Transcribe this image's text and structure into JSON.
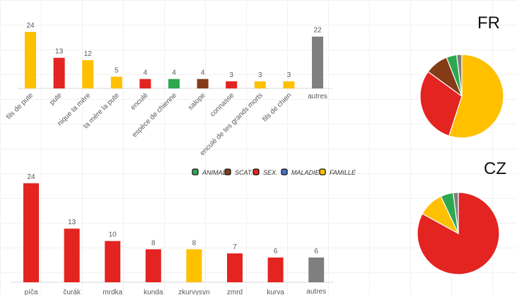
{
  "colors": {
    "ANIMAL": "#2ea84e",
    "SCAT.": "#843c17",
    "SEX.": "#e32420",
    "MALADIE": "#4472c4",
    "FAMILLE": "#ffc000",
    "autres": "#7f7f7f"
  },
  "legend": [
    {
      "label": "ANIMAL",
      "key": "ANIMAL"
    },
    {
      "label": "SCAT.",
      "key": "SCAT."
    },
    {
      "label": "SEX.",
      "key": "SEX."
    },
    {
      "label": "MALADIE",
      "key": "MALADIE"
    },
    {
      "label": "FAMILLE",
      "key": "FAMILLE"
    }
  ],
  "chart_data": [
    {
      "type": "bar",
      "title": "FR",
      "categories": [
        "fils de pute",
        "pute",
        "nique ta mère",
        "ta mère la pute",
        "enculé",
        "espèce de chienne",
        "salope",
        "connasse",
        "enculé de tes grands morts",
        "fils de chien",
        "autres"
      ],
      "values": [
        24,
        13,
        12,
        5,
        4,
        4,
        4,
        3,
        3,
        3,
        22
      ],
      "category_type": [
        "FAMILLE",
        "SEX.",
        "FAMILLE",
        "FAMILLE",
        "SEX.",
        "ANIMAL",
        "SCAT.",
        "SEX.",
        "FAMILLE",
        "FAMILLE",
        "autres"
      ],
      "grid": false
    },
    {
      "type": "pie",
      "title": "FR",
      "categories": [
        "FAMILLE",
        "SEX.",
        "SCAT.",
        "ANIMAL",
        "autres"
      ],
      "values": [
        55,
        30,
        9,
        4,
        2
      ]
    },
    {
      "type": "bar",
      "title": "CZ",
      "categories": [
        "píča",
        "čurák",
        "mrdka",
        "kunda",
        "zkurvysyn",
        "zmrd",
        "kurva",
        "autres"
      ],
      "values": [
        24,
        13,
        10,
        8,
        8,
        7,
        6,
        6
      ],
      "category_type": [
        "SEX.",
        "SEX.",
        "SEX.",
        "SEX.",
        "FAMILLE",
        "SEX.",
        "SEX.",
        "autres"
      ],
      "grid": false
    },
    {
      "type": "pie",
      "title": "CZ",
      "categories": [
        "SEX.",
        "FAMILLE",
        "ANIMAL",
        "autres"
      ],
      "values": [
        83,
        10,
        5,
        2
      ]
    }
  ]
}
